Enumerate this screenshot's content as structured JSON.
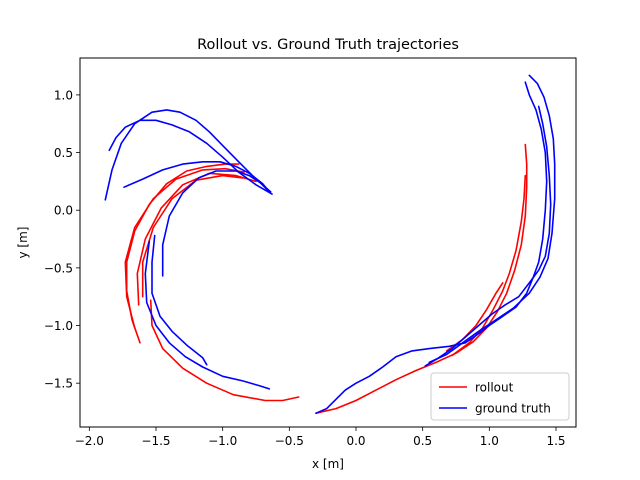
{
  "chart_data": {
    "type": "line",
    "title": "Rollout vs. Ground Truth trajectories",
    "xlabel": "x [m]",
    "ylabel": "y [m]",
    "xlim": [
      -2.07,
      1.65
    ],
    "ylim": [
      -1.88,
      1.32
    ],
    "xticks": [
      -2.0,
      -1.5,
      -1.0,
      -0.5,
      0.0,
      0.5,
      1.0,
      1.5
    ],
    "xtick_labels": [
      "−2.0",
      "−1.5",
      "−1.0",
      "−0.5",
      "0.0",
      "0.5",
      "1.0",
      "1.5"
    ],
    "yticks": [
      -1.5,
      -1.0,
      -0.5,
      0.0,
      0.5,
      1.0
    ],
    "ytick_labels": [
      "−1.5",
      "−1.0",
      "−0.5",
      "0.0",
      "0.5",
      "1.0"
    ],
    "grid": false,
    "legend_position": "lower-right",
    "legend": [
      {
        "label": "rollout",
        "color": "#ff0000"
      },
      {
        "label": "ground truth",
        "color": "#0000ff"
      }
    ],
    "series": [
      {
        "group": "rollout",
        "color": "#ff0000",
        "points": [
          [
            -1.62,
            -1.15
          ],
          [
            -1.68,
            -0.95
          ],
          [
            -1.72,
            -0.7
          ],
          [
            -1.72,
            -0.45
          ],
          [
            -1.66,
            -0.18
          ],
          [
            -1.55,
            0.05
          ],
          [
            -1.42,
            0.23
          ],
          [
            -1.27,
            0.34
          ],
          [
            -1.12,
            0.38
          ],
          [
            -0.98,
            0.4
          ],
          [
            -0.88,
            0.4
          ]
        ]
      },
      {
        "group": "rollout",
        "color": "#ff0000",
        "points": [
          [
            -1.66,
            -1.02
          ],
          [
            -1.72,
            -0.75
          ],
          [
            -1.73,
            -0.45
          ],
          [
            -1.66,
            -0.15
          ],
          [
            -1.52,
            0.1
          ],
          [
            -1.35,
            0.27
          ],
          [
            -1.15,
            0.35
          ],
          [
            -0.98,
            0.36
          ],
          [
            -0.84,
            0.33
          ]
        ]
      },
      {
        "group": "rollout",
        "color": "#ff0000",
        "points": [
          [
            -1.63,
            -0.82
          ],
          [
            -1.64,
            -0.55
          ],
          [
            -1.58,
            -0.25
          ],
          [
            -1.46,
            0.02
          ],
          [
            -1.3,
            0.22
          ],
          [
            -1.1,
            0.32
          ],
          [
            -0.9,
            0.3
          ],
          [
            -0.75,
            0.25
          ]
        ]
      },
      {
        "group": "rollout",
        "color": "#ff0000",
        "points": [
          [
            -1.6,
            -0.75
          ],
          [
            -1.6,
            -0.45
          ],
          [
            -1.52,
            -0.15
          ],
          [
            -1.38,
            0.1
          ],
          [
            -1.2,
            0.26
          ],
          [
            -1.0,
            0.3
          ],
          [
            -0.85,
            0.28
          ]
        ]
      },
      {
        "group": "rollout",
        "color": "#ff0000",
        "points": [
          [
            -1.54,
            -0.78
          ],
          [
            -1.53,
            -1.0
          ],
          [
            -1.45,
            -1.2
          ],
          [
            -1.3,
            -1.37
          ],
          [
            -1.12,
            -1.5
          ],
          [
            -0.92,
            -1.6
          ],
          [
            -0.68,
            -1.65
          ],
          [
            -0.55,
            -1.65
          ],
          [
            -0.43,
            -1.62
          ]
        ]
      },
      {
        "group": "rollout",
        "color": "#ff0000",
        "points": [
          [
            -0.3,
            -1.76
          ],
          [
            -0.15,
            -1.72
          ],
          [
            0.0,
            -1.65
          ],
          [
            0.15,
            -1.56
          ],
          [
            0.3,
            -1.47
          ],
          [
            0.45,
            -1.39
          ],
          [
            0.6,
            -1.32
          ],
          [
            0.75,
            -1.24
          ],
          [
            0.88,
            -1.14
          ],
          [
            0.98,
            -1.02
          ],
          [
            1.06,
            -0.88
          ],
          [
            1.13,
            -0.72
          ],
          [
            1.19,
            -0.52
          ],
          [
            1.24,
            -0.3
          ],
          [
            1.27,
            -0.05
          ],
          [
            1.28,
            0.2
          ],
          [
            1.28,
            0.4
          ],
          [
            1.27,
            0.57
          ]
        ]
      },
      {
        "group": "rollout",
        "color": "#ff0000",
        "points": [
          [
            0.72,
            -1.26
          ],
          [
            0.85,
            -1.15
          ],
          [
            0.95,
            -1.02
          ],
          [
            1.03,
            -0.86
          ],
          [
            1.1,
            -0.7
          ],
          [
            1.15,
            -0.55
          ],
          [
            1.2,
            -0.35
          ],
          [
            1.24,
            -0.1
          ],
          [
            1.26,
            0.1
          ],
          [
            1.27,
            0.3
          ]
        ]
      },
      {
        "group": "rollout",
        "color": "#ff0000",
        "points": [
          [
            0.68,
            -1.22
          ],
          [
            0.8,
            -1.12
          ],
          [
            0.9,
            -1.0
          ],
          [
            0.98,
            -0.86
          ],
          [
            1.05,
            -0.72
          ],
          [
            1.1,
            -0.63
          ]
        ]
      },
      {
        "group": "ground truth",
        "color": "#0000ff",
        "points": [
          [
            -0.63,
            0.14
          ],
          [
            -0.75,
            0.22
          ],
          [
            -0.88,
            0.33
          ],
          [
            -1.0,
            0.46
          ],
          [
            -1.12,
            0.58
          ],
          [
            -1.25,
            0.68
          ],
          [
            -1.38,
            0.74
          ],
          [
            -1.5,
            0.78
          ],
          [
            -1.62,
            0.78
          ],
          [
            -1.73,
            0.72
          ],
          [
            -1.8,
            0.63
          ],
          [
            -1.85,
            0.52
          ]
        ]
      },
      {
        "group": "ground truth",
        "color": "#0000ff",
        "points": [
          [
            -0.64,
            0.16
          ],
          [
            -0.75,
            0.27
          ],
          [
            -0.88,
            0.42
          ],
          [
            -1.0,
            0.56
          ],
          [
            -1.1,
            0.68
          ],
          [
            -1.2,
            0.78
          ],
          [
            -1.32,
            0.85
          ],
          [
            -1.42,
            0.87
          ],
          [
            -1.53,
            0.85
          ],
          [
            -1.66,
            0.75
          ],
          [
            -1.76,
            0.58
          ],
          [
            -1.83,
            0.35
          ],
          [
            -1.88,
            0.09
          ]
        ]
      },
      {
        "group": "ground truth",
        "color": "#0000ff",
        "points": [
          [
            -1.74,
            0.2
          ],
          [
            -1.6,
            0.27
          ],
          [
            -1.45,
            0.35
          ],
          [
            -1.3,
            0.4
          ],
          [
            -1.15,
            0.42
          ],
          [
            -1.02,
            0.42
          ],
          [
            -0.9,
            0.38
          ],
          [
            -0.8,
            0.32
          ],
          [
            -0.7,
            0.23
          ],
          [
            -0.65,
            0.16
          ]
        ]
      },
      {
        "group": "ground truth",
        "color": "#0000ff",
        "points": [
          [
            -1.45,
            -0.57
          ],
          [
            -1.45,
            -0.3
          ],
          [
            -1.4,
            -0.05
          ],
          [
            -1.3,
            0.15
          ],
          [
            -1.18,
            0.28
          ],
          [
            -1.05,
            0.34
          ],
          [
            -0.9,
            0.34
          ],
          [
            -0.8,
            0.3
          ],
          [
            -0.72,
            0.24
          ],
          [
            -0.66,
            0.17
          ]
        ]
      },
      {
        "group": "ground truth",
        "color": "#0000ff",
        "points": [
          [
            -1.51,
            -0.22
          ],
          [
            -1.53,
            -0.45
          ],
          [
            -1.53,
            -0.72
          ],
          [
            -1.47,
            -0.92
          ],
          [
            -1.38,
            -1.05
          ],
          [
            -1.27,
            -1.17
          ],
          [
            -1.15,
            -1.28
          ],
          [
            -1.12,
            -1.34
          ]
        ]
      },
      {
        "group": "ground truth",
        "color": "#0000ff",
        "points": [
          [
            -1.55,
            -0.27
          ],
          [
            -1.58,
            -0.55
          ],
          [
            -1.57,
            -0.8
          ],
          [
            -1.5,
            -1.0
          ],
          [
            -1.4,
            -1.15
          ],
          [
            -1.28,
            -1.27
          ],
          [
            -1.15,
            -1.36
          ],
          [
            -1.0,
            -1.44
          ],
          [
            -0.85,
            -1.48
          ],
          [
            -0.73,
            -1.52
          ],
          [
            -0.65,
            -1.55
          ]
        ]
      },
      {
        "group": "ground truth",
        "color": "#0000ff",
        "points": [
          [
            -0.3,
            -1.76
          ],
          [
            -0.22,
            -1.72
          ],
          [
            -0.15,
            -1.64
          ],
          [
            -0.08,
            -1.56
          ],
          [
            0.0,
            -1.5
          ],
          [
            0.1,
            -1.44
          ],
          [
            0.2,
            -1.36
          ],
          [
            0.3,
            -1.27
          ],
          [
            0.42,
            -1.22
          ],
          [
            0.55,
            -1.2
          ],
          [
            0.7,
            -1.18
          ],
          [
            0.82,
            -1.15
          ],
          [
            0.92,
            -1.07
          ],
          [
            1.0,
            -1.0
          ],
          [
            1.1,
            -0.92
          ],
          [
            1.2,
            -0.84
          ],
          [
            1.28,
            -0.72
          ],
          [
            1.33,
            -0.58
          ],
          [
            1.37,
            -0.45
          ],
          [
            1.4,
            -0.25
          ],
          [
            1.42,
            0.0
          ],
          [
            1.43,
            0.25
          ],
          [
            1.42,
            0.5
          ],
          [
            1.39,
            0.7
          ],
          [
            1.35,
            0.87
          ],
          [
            1.3,
            1.0
          ],
          [
            1.27,
            1.11
          ]
        ]
      },
      {
        "group": "ground truth",
        "color": "#0000ff",
        "points": [
          [
            0.52,
            -1.35
          ],
          [
            0.62,
            -1.28
          ],
          [
            0.72,
            -1.2
          ],
          [
            0.82,
            -1.1
          ],
          [
            0.92,
            -1.0
          ],
          [
            1.02,
            -0.9
          ],
          [
            1.12,
            -0.82
          ],
          [
            1.22,
            -0.75
          ],
          [
            1.3,
            -0.63
          ],
          [
            1.37,
            -0.52
          ],
          [
            1.42,
            -0.4
          ],
          [
            1.45,
            -0.2
          ],
          [
            1.46,
            0.05
          ],
          [
            1.45,
            0.3
          ],
          [
            1.43,
            0.55
          ],
          [
            1.4,
            0.75
          ],
          [
            1.37,
            0.9
          ]
        ]
      },
      {
        "group": "ground truth",
        "color": "#0000ff",
        "points": [
          [
            0.55,
            -1.32
          ],
          [
            0.68,
            -1.25
          ],
          [
            0.8,
            -1.15
          ],
          [
            0.92,
            -1.05
          ],
          [
            1.05,
            -0.95
          ],
          [
            1.18,
            -0.85
          ],
          [
            1.3,
            -0.72
          ],
          [
            1.38,
            -0.58
          ],
          [
            1.44,
            -0.42
          ],
          [
            1.47,
            -0.2
          ],
          [
            1.49,
            0.1
          ],
          [
            1.49,
            0.4
          ],
          [
            1.48,
            0.62
          ],
          [
            1.45,
            0.82
          ],
          [
            1.41,
            0.98
          ],
          [
            1.36,
            1.1
          ],
          [
            1.3,
            1.17
          ]
        ]
      }
    ]
  }
}
